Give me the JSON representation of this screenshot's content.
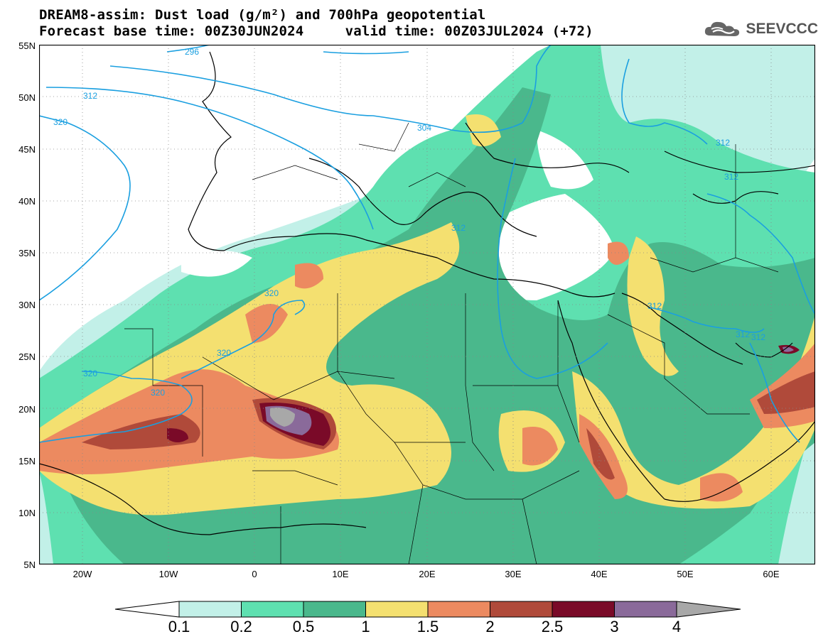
{
  "header": {
    "title_line1": "DREAM8-assim: Dust load (g/m²) and 700hPa geopotential",
    "title_line2": "Forecast base time: 00Z30JUN2024     valid time: 00Z03JUL2024 (+72)",
    "logo_text": "SEEVCCC"
  },
  "axes": {
    "lat_labels": [
      "55N",
      "50N",
      "45N",
      "40N",
      "35N",
      "30N",
      "25N",
      "20N",
      "15N",
      "10N",
      "5N"
    ],
    "lon_labels": [
      "20W",
      "10W",
      "0",
      "10E",
      "20E",
      "30E",
      "40E",
      "50E",
      "60E"
    ]
  },
  "contours": {
    "color": "#1a9fe0",
    "labels": [
      "296",
      "312",
      "320",
      "304",
      "320",
      "320",
      "320",
      "320",
      "312",
      "312",
      "312",
      "312",
      "312",
      "312"
    ]
  },
  "legend": {
    "colors": [
      "#c2f0e8",
      "#5ee0b0",
      "#4ab88c",
      "#f4e070",
      "#ec8a60",
      "#b04a3a",
      "#7a0a28",
      "#8a6a9a",
      "#a8a8a8"
    ],
    "labels": [
      "0.1",
      "0.2",
      "0.5",
      "1",
      "1.5",
      "2",
      "2.5",
      "3",
      "4"
    ]
  }
}
